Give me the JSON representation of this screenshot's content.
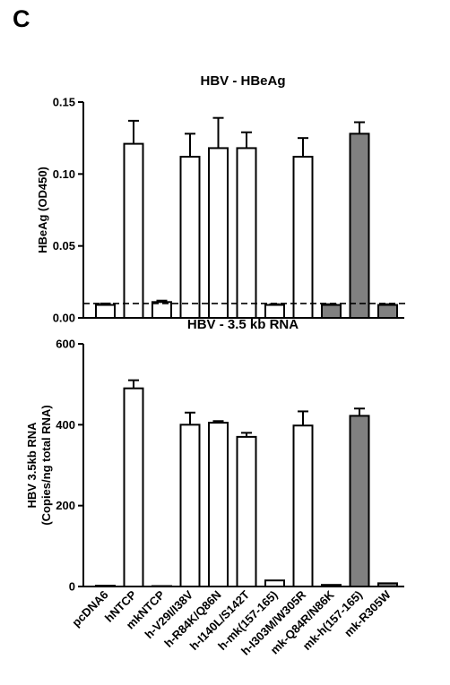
{
  "panel_label": "C",
  "colors": {
    "open_bar": "#ffffff",
    "filled_bar": "#808080",
    "stroke": "#000000"
  },
  "chart_data": [
    {
      "type": "bar",
      "title": "HBV - HBeAg",
      "xlabel": "",
      "ylabel": "HBeAg (OD450)",
      "ylim": [
        0,
        0.15
      ],
      "yticks": [
        "0.00",
        "0.05",
        "0.10",
        "0.15"
      ],
      "ytick_values": [
        0,
        0.05,
        0.1,
        0.15
      ],
      "categories": [
        "pcDNA6",
        "hNTCP",
        "mkNTCP",
        "h-V29I/I38V",
        "h-R84K/Q86N",
        "h-I140L/S142T",
        "h-mk(157-165)",
        "h-I303M/W305R",
        "mk-Q84R/N86K",
        "mk-h(157-165)",
        "mk-R305W"
      ],
      "values": [
        0.009,
        0.121,
        0.011,
        0.112,
        0.118,
        0.118,
        0.009,
        0.112,
        0.009,
        0.128,
        0.009
      ],
      "errors": [
        0.001,
        0.016,
        0.001,
        0.016,
        0.021,
        0.011,
        0.0005,
        0.013,
        0.0005,
        0.008,
        0.0005
      ],
      "filled": [
        false,
        false,
        false,
        false,
        false,
        false,
        false,
        false,
        true,
        true,
        true
      ],
      "threshold_line": 0.01,
      "grid": false,
      "legend": "none"
    },
    {
      "type": "bar",
      "title": "HBV - 3.5 kb RNA",
      "xlabel": "",
      "ylabel_lines": [
        "HBV 3.5kb RNA",
        "(Copies/ng total RNA)"
      ],
      "ylim": [
        0,
        600
      ],
      "yticks": [
        "0",
        "200",
        "400",
        "600"
      ],
      "ytick_values": [
        0,
        200,
        400,
        600
      ],
      "categories": [
        "pcDNA6",
        "hNTCP",
        "mkNTCP",
        "h-V29I/I38V",
        "h-R84K/Q86N",
        "h-I140L/S142T",
        "h-mk(157-165)",
        "h-I303M/W305R",
        "mk-Q84R/N86K",
        "mk-h(157-165)",
        "mk-R305W"
      ],
      "values": [
        2,
        490,
        1,
        400,
        405,
        370,
        15,
        398,
        4,
        422,
        8
      ],
      "errors": [
        0,
        20,
        0,
        30,
        4,
        10,
        0,
        35,
        0,
        18,
        0
      ],
      "filled": [
        false,
        false,
        false,
        false,
        false,
        false,
        false,
        false,
        true,
        true,
        true
      ],
      "grid": false,
      "legend": "none"
    }
  ]
}
